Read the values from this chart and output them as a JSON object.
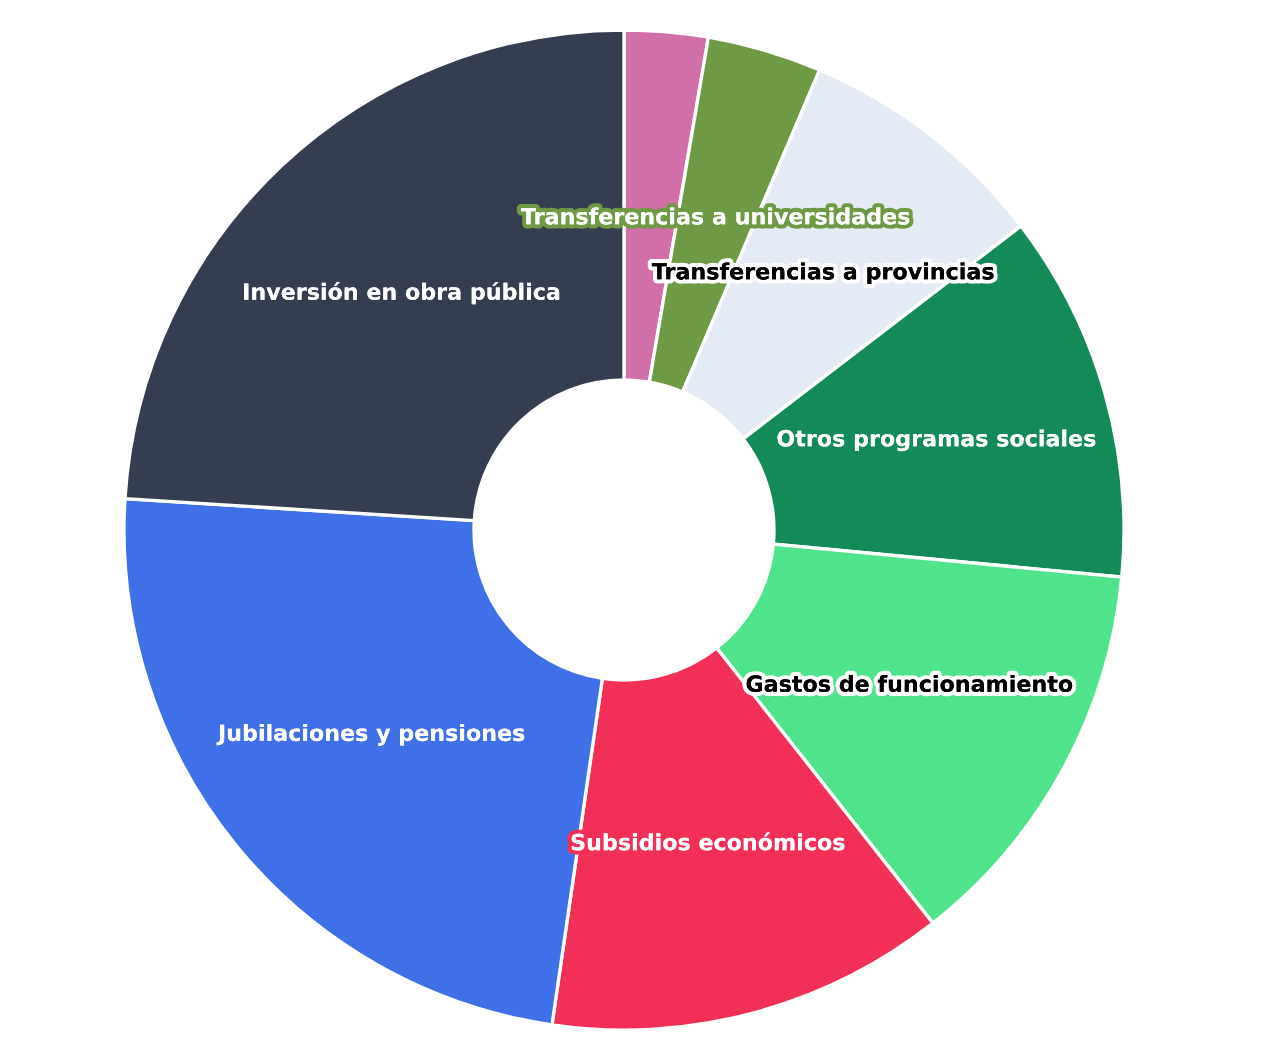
{
  "chart_data": {
    "type": "donut",
    "categories": [
      null,
      "Transferencias a universidades",
      "Transferencias a provincias",
      "Otros programas sociales",
      "Gastos de funcionamiento",
      "Subsidios económicos",
      "Jubilaciones y pensiones",
      "Inversión en obra pública"
    ],
    "values": [
      2.7,
      3.7,
      8.2,
      11.9,
      12.9,
      12.9,
      23.7,
      24.0
    ],
    "colors": [
      "#d06fa8",
      "#6f9a45",
      "#e5ebf5",
      "#138a58",
      "#4fe48c",
      "#f22f57",
      "#4070e8",
      "#343e50"
    ]
  }
}
